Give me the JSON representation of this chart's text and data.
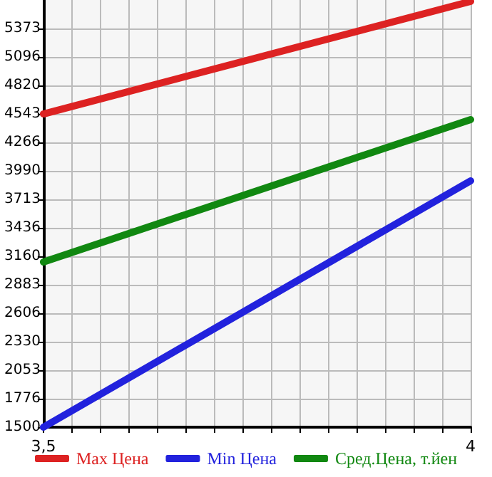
{
  "chart_data": {
    "type": "line",
    "x": [
      3.5,
      4
    ],
    "series": [
      {
        "name": "Max Цена",
        "color": "#dd2222",
        "values": [
          4543,
          5636
        ]
      },
      {
        "name": "Min Цена",
        "color": "#2222dd",
        "values": [
          1500,
          3893
        ]
      },
      {
        "name": "Сред.Цена, т.йен",
        "color": "#118811",
        "values": [
          3105,
          4488
        ]
      }
    ],
    "xlim": [
      3.5,
      4
    ],
    "xticks": [
      {
        "value": 3.5,
        "label": "3,5"
      },
      {
        "value": 3.533,
        "label": null
      },
      {
        "value": 3.567,
        "label": null
      },
      {
        "value": 3.6,
        "label": null
      },
      {
        "value": 3.633,
        "label": null
      },
      {
        "value": 3.667,
        "label": null
      },
      {
        "value": 3.7,
        "label": null
      },
      {
        "value": 3.733,
        "label": null
      },
      {
        "value": 3.767,
        "label": null
      },
      {
        "value": 3.8,
        "label": null
      },
      {
        "value": 3.833,
        "label": null
      },
      {
        "value": 3.867,
        "label": null
      },
      {
        "value": 3.9,
        "label": null
      },
      {
        "value": 3.933,
        "label": null
      },
      {
        "value": 3.967,
        "label": null
      },
      {
        "value": 4,
        "label": "4"
      }
    ],
    "ylim": [
      1500,
      5650
    ],
    "yticks": [
      1500,
      1776,
      2053,
      2330,
      2606,
      2883,
      3160,
      3436,
      3713,
      3990,
      4266,
      4543,
      4820,
      5096,
      5373
    ],
    "grid": true,
    "legend": "bottom",
    "marker": "none",
    "line_style": "solid"
  }
}
